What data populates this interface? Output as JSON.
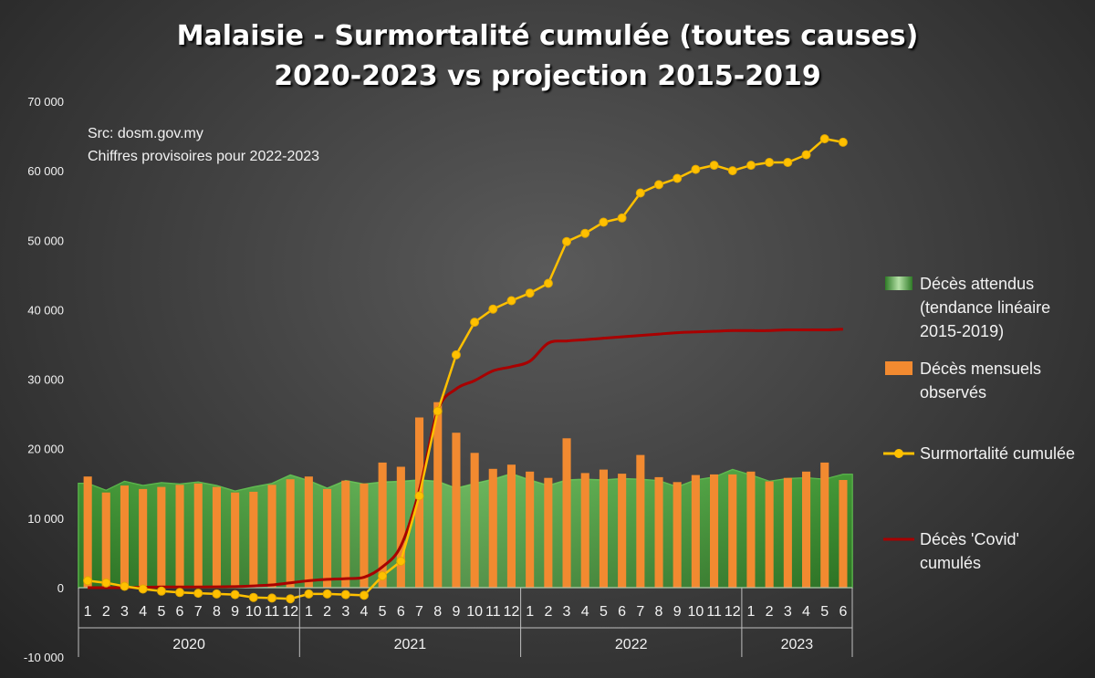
{
  "title_line1": "Malaisie - Surmortalité cumulée (toutes causes)",
  "title_line2": "2020-2023 vs projection 2015-2019",
  "source_line1": "Src: dosm.gov.my",
  "source_line2": "Chiffres provisoires pour 2022-2023",
  "legend": [
    {
      "key": "expected",
      "label": "Décès attendus (tendance linéaire 2015-2019)"
    },
    {
      "key": "observed",
      "label": "Décès mensuels observés"
    },
    {
      "key": "excess",
      "label": "Surmortalité cumulée"
    },
    {
      "key": "covid",
      "label": "Décès 'Covid' cumulés"
    }
  ],
  "colors": {
    "expected": "#3a8a30",
    "observed": "#f28a30",
    "excess": "#ffc000",
    "covid": "#a80000"
  },
  "chart_data": {
    "type": "bar",
    "ylim": [
      -10000,
      70000
    ],
    "yticks": [
      -10000,
      0,
      10000,
      20000,
      30000,
      40000,
      50000,
      60000,
      70000
    ],
    "ytick_labels": [
      "-10 000",
      "0",
      "10 000",
      "20 000",
      "30 000",
      "40 000",
      "50 000",
      "60 000",
      "70 000"
    ],
    "month_labels": [
      "1",
      "2",
      "3",
      "4",
      "5",
      "6",
      "7",
      "8",
      "9",
      "10",
      "11",
      "12",
      "1",
      "2",
      "3",
      "4",
      "5",
      "6",
      "7",
      "8",
      "9",
      "10",
      "11",
      "12",
      "1",
      "2",
      "3",
      "4",
      "5",
      "6",
      "7",
      "8",
      "9",
      "10",
      "11",
      "12",
      "1",
      "2",
      "3",
      "4",
      "5",
      "6"
    ],
    "year_groups": [
      {
        "label": "2020",
        "count": 12
      },
      {
        "label": "2021",
        "count": 12
      },
      {
        "label": "2022",
        "count": 12
      },
      {
        "label": "2023",
        "count": 6
      }
    ],
    "series": [
      {
        "name": "Décès attendus (tendance linéaire 2015-2019)",
        "type": "area",
        "values": [
          15000,
          14000,
          15300,
          14700,
          15100,
          14900,
          15200,
          14700,
          13900,
          14500,
          15000,
          16200,
          15400,
          14300,
          15400,
          14900,
          15200,
          15300,
          15500,
          15300,
          14300,
          15000,
          15600,
          16400,
          15500,
          14700,
          15500,
          15600,
          15500,
          15700,
          15600,
          15400,
          14500,
          15500,
          15900,
          17000,
          16200,
          15300,
          15700,
          15800,
          15600,
          16300
        ]
      },
      {
        "name": "Décès mensuels observés",
        "type": "bar",
        "values": [
          16000,
          13700,
          14700,
          14200,
          14500,
          14800,
          15000,
          14500,
          13700,
          13800,
          14800,
          15600,
          16000,
          14200,
          15400,
          15000,
          18000,
          17400,
          24500,
          26700,
          22300,
          19400,
          17100,
          17700,
          16700,
          15800,
          21500,
          16500,
          17000,
          16400,
          19100,
          15900,
          15200,
          16200,
          16300,
          16300,
          16700,
          15300,
          15800,
          16700,
          18000,
          15500
        ]
      },
      {
        "name": "Surmortalité cumulée",
        "type": "line",
        "values": [
          1000,
          700,
          200,
          -200,
          -500,
          -700,
          -800,
          -900,
          -1000,
          -1400,
          -1500,
          -1600,
          -900,
          -900,
          -1000,
          -1100,
          1700,
          3800,
          13200,
          25400,
          33500,
          38200,
          40100,
          41300,
          42400,
          43800,
          49800,
          51000,
          52600,
          53200,
          56800,
          58000,
          58900,
          60200,
          60800,
          60000,
          60800,
          61200,
          61200,
          62300,
          64600,
          64100
        ]
      },
      {
        "name": "Décès 'Covid' cumulés",
        "type": "line",
        "values": [
          0,
          0,
          0,
          50,
          100,
          100,
          100,
          120,
          150,
          250,
          400,
          700,
          1000,
          1200,
          1300,
          1500,
          3000,
          6000,
          14000,
          25500,
          28600,
          29800,
          31200,
          31800,
          32600,
          35200,
          35500,
          35700,
          35900,
          36100,
          36300,
          36500,
          36700,
          36800,
          36900,
          37000,
          37000,
          37000,
          37100,
          37100,
          37100,
          37200
        ]
      }
    ]
  }
}
